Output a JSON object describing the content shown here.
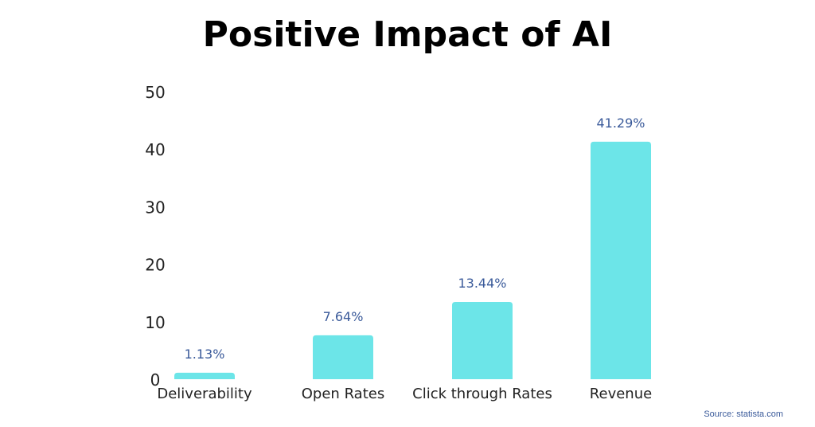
{
  "chart_data": {
    "type": "bar",
    "title": "Positive Impact of AI",
    "xlabel": "",
    "ylabel": "",
    "categories": [
      "Deliverability",
      "Open Rates",
      "Click through Rates",
      "Revenue"
    ],
    "values": [
      1.13,
      7.64,
      13.44,
      41.29
    ],
    "data_labels": [
      "1.13%",
      "7.64%",
      "13.44%",
      "41.29%"
    ],
    "ylim": [
      0,
      50
    ],
    "yticks": [
      0,
      10,
      20,
      30,
      40,
      50
    ],
    "grid": false,
    "bar_color": "#6ce5e8",
    "label_color": "#3a5a9a"
  },
  "source": "Source: statista.com"
}
